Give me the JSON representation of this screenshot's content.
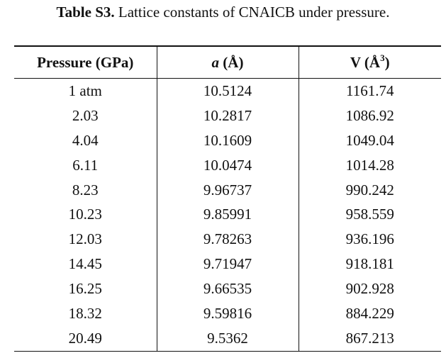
{
  "caption": {
    "label": "Table S3.",
    "text": "Lattice constants of CNAICB under pressure."
  },
  "table": {
    "headers": {
      "pressure": "Pressure (GPa)",
      "a_symbol": "a",
      "a_unit": "(Å)",
      "v_prefix": "V (Å",
      "v_sup": "3",
      "v_suffix": ")"
    },
    "rows": [
      [
        "1 atm",
        "10.5124",
        "1161.74"
      ],
      [
        "2.03",
        "10.2817",
        "1086.92"
      ],
      [
        "4.04",
        "10.1609",
        "1049.04"
      ],
      [
        "6.11",
        "10.0474",
        "1014.28"
      ],
      [
        "8.23",
        "9.96737",
        "990.242"
      ],
      [
        "10.23",
        "9.85991",
        "958.559"
      ],
      [
        "12.03",
        "9.78263",
        "936.196"
      ],
      [
        "14.45",
        "9.71947",
        "918.181"
      ],
      [
        "16.25",
        "9.66535",
        "902.928"
      ],
      [
        "18.32",
        "9.59816",
        "884.229"
      ],
      [
        "20.49",
        "9.5362",
        "867.213"
      ]
    ]
  }
}
